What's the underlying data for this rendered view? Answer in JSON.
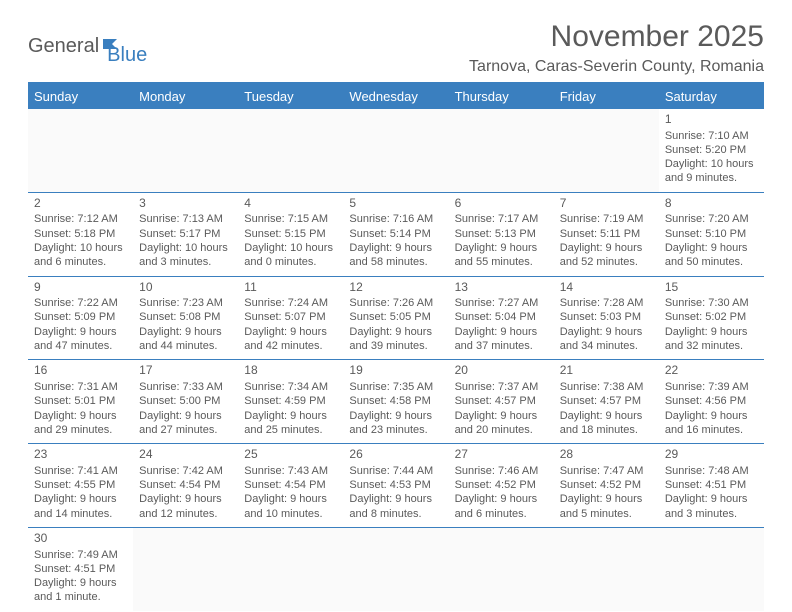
{
  "logo": {
    "part1": "General",
    "part2": "Blue"
  },
  "title": "November 2025",
  "location": "Tarnova, Caras-Severin County, Romania",
  "colors": {
    "accent": "#3a7fbf",
    "text": "#5a5a5a",
    "bg": "#ffffff"
  },
  "dayHeaders": [
    "Sunday",
    "Monday",
    "Tuesday",
    "Wednesday",
    "Thursday",
    "Friday",
    "Saturday"
  ],
  "weeks": [
    [
      null,
      null,
      null,
      null,
      null,
      null,
      {
        "num": "1",
        "sunrise": "Sunrise: 7:10 AM",
        "sunset": "Sunset: 5:20 PM",
        "daylight": "Daylight: 10 hours and 9 minutes."
      }
    ],
    [
      {
        "num": "2",
        "sunrise": "Sunrise: 7:12 AM",
        "sunset": "Sunset: 5:18 PM",
        "daylight": "Daylight: 10 hours and 6 minutes."
      },
      {
        "num": "3",
        "sunrise": "Sunrise: 7:13 AM",
        "sunset": "Sunset: 5:17 PM",
        "daylight": "Daylight: 10 hours and 3 minutes."
      },
      {
        "num": "4",
        "sunrise": "Sunrise: 7:15 AM",
        "sunset": "Sunset: 5:15 PM",
        "daylight": "Daylight: 10 hours and 0 minutes."
      },
      {
        "num": "5",
        "sunrise": "Sunrise: 7:16 AM",
        "sunset": "Sunset: 5:14 PM",
        "daylight": "Daylight: 9 hours and 58 minutes."
      },
      {
        "num": "6",
        "sunrise": "Sunrise: 7:17 AM",
        "sunset": "Sunset: 5:13 PM",
        "daylight": "Daylight: 9 hours and 55 minutes."
      },
      {
        "num": "7",
        "sunrise": "Sunrise: 7:19 AM",
        "sunset": "Sunset: 5:11 PM",
        "daylight": "Daylight: 9 hours and 52 minutes."
      },
      {
        "num": "8",
        "sunrise": "Sunrise: 7:20 AM",
        "sunset": "Sunset: 5:10 PM",
        "daylight": "Daylight: 9 hours and 50 minutes."
      }
    ],
    [
      {
        "num": "9",
        "sunrise": "Sunrise: 7:22 AM",
        "sunset": "Sunset: 5:09 PM",
        "daylight": "Daylight: 9 hours and 47 minutes."
      },
      {
        "num": "10",
        "sunrise": "Sunrise: 7:23 AM",
        "sunset": "Sunset: 5:08 PM",
        "daylight": "Daylight: 9 hours and 44 minutes."
      },
      {
        "num": "11",
        "sunrise": "Sunrise: 7:24 AM",
        "sunset": "Sunset: 5:07 PM",
        "daylight": "Daylight: 9 hours and 42 minutes."
      },
      {
        "num": "12",
        "sunrise": "Sunrise: 7:26 AM",
        "sunset": "Sunset: 5:05 PM",
        "daylight": "Daylight: 9 hours and 39 minutes."
      },
      {
        "num": "13",
        "sunrise": "Sunrise: 7:27 AM",
        "sunset": "Sunset: 5:04 PM",
        "daylight": "Daylight: 9 hours and 37 minutes."
      },
      {
        "num": "14",
        "sunrise": "Sunrise: 7:28 AM",
        "sunset": "Sunset: 5:03 PM",
        "daylight": "Daylight: 9 hours and 34 minutes."
      },
      {
        "num": "15",
        "sunrise": "Sunrise: 7:30 AM",
        "sunset": "Sunset: 5:02 PM",
        "daylight": "Daylight: 9 hours and 32 minutes."
      }
    ],
    [
      {
        "num": "16",
        "sunrise": "Sunrise: 7:31 AM",
        "sunset": "Sunset: 5:01 PM",
        "daylight": "Daylight: 9 hours and 29 minutes."
      },
      {
        "num": "17",
        "sunrise": "Sunrise: 7:33 AM",
        "sunset": "Sunset: 5:00 PM",
        "daylight": "Daylight: 9 hours and 27 minutes."
      },
      {
        "num": "18",
        "sunrise": "Sunrise: 7:34 AM",
        "sunset": "Sunset: 4:59 PM",
        "daylight": "Daylight: 9 hours and 25 minutes."
      },
      {
        "num": "19",
        "sunrise": "Sunrise: 7:35 AM",
        "sunset": "Sunset: 4:58 PM",
        "daylight": "Daylight: 9 hours and 23 minutes."
      },
      {
        "num": "20",
        "sunrise": "Sunrise: 7:37 AM",
        "sunset": "Sunset: 4:57 PM",
        "daylight": "Daylight: 9 hours and 20 minutes."
      },
      {
        "num": "21",
        "sunrise": "Sunrise: 7:38 AM",
        "sunset": "Sunset: 4:57 PM",
        "daylight": "Daylight: 9 hours and 18 minutes."
      },
      {
        "num": "22",
        "sunrise": "Sunrise: 7:39 AM",
        "sunset": "Sunset: 4:56 PM",
        "daylight": "Daylight: 9 hours and 16 minutes."
      }
    ],
    [
      {
        "num": "23",
        "sunrise": "Sunrise: 7:41 AM",
        "sunset": "Sunset: 4:55 PM",
        "daylight": "Daylight: 9 hours and 14 minutes."
      },
      {
        "num": "24",
        "sunrise": "Sunrise: 7:42 AM",
        "sunset": "Sunset: 4:54 PM",
        "daylight": "Daylight: 9 hours and 12 minutes."
      },
      {
        "num": "25",
        "sunrise": "Sunrise: 7:43 AM",
        "sunset": "Sunset: 4:54 PM",
        "daylight": "Daylight: 9 hours and 10 minutes."
      },
      {
        "num": "26",
        "sunrise": "Sunrise: 7:44 AM",
        "sunset": "Sunset: 4:53 PM",
        "daylight": "Daylight: 9 hours and 8 minutes."
      },
      {
        "num": "27",
        "sunrise": "Sunrise: 7:46 AM",
        "sunset": "Sunset: 4:52 PM",
        "daylight": "Daylight: 9 hours and 6 minutes."
      },
      {
        "num": "28",
        "sunrise": "Sunrise: 7:47 AM",
        "sunset": "Sunset: 4:52 PM",
        "daylight": "Daylight: 9 hours and 5 minutes."
      },
      {
        "num": "29",
        "sunrise": "Sunrise: 7:48 AM",
        "sunset": "Sunset: 4:51 PM",
        "daylight": "Daylight: 9 hours and 3 minutes."
      }
    ],
    [
      {
        "num": "30",
        "sunrise": "Sunrise: 7:49 AM",
        "sunset": "Sunset: 4:51 PM",
        "daylight": "Daylight: 9 hours and 1 minute."
      },
      null,
      null,
      null,
      null,
      null,
      null
    ]
  ]
}
